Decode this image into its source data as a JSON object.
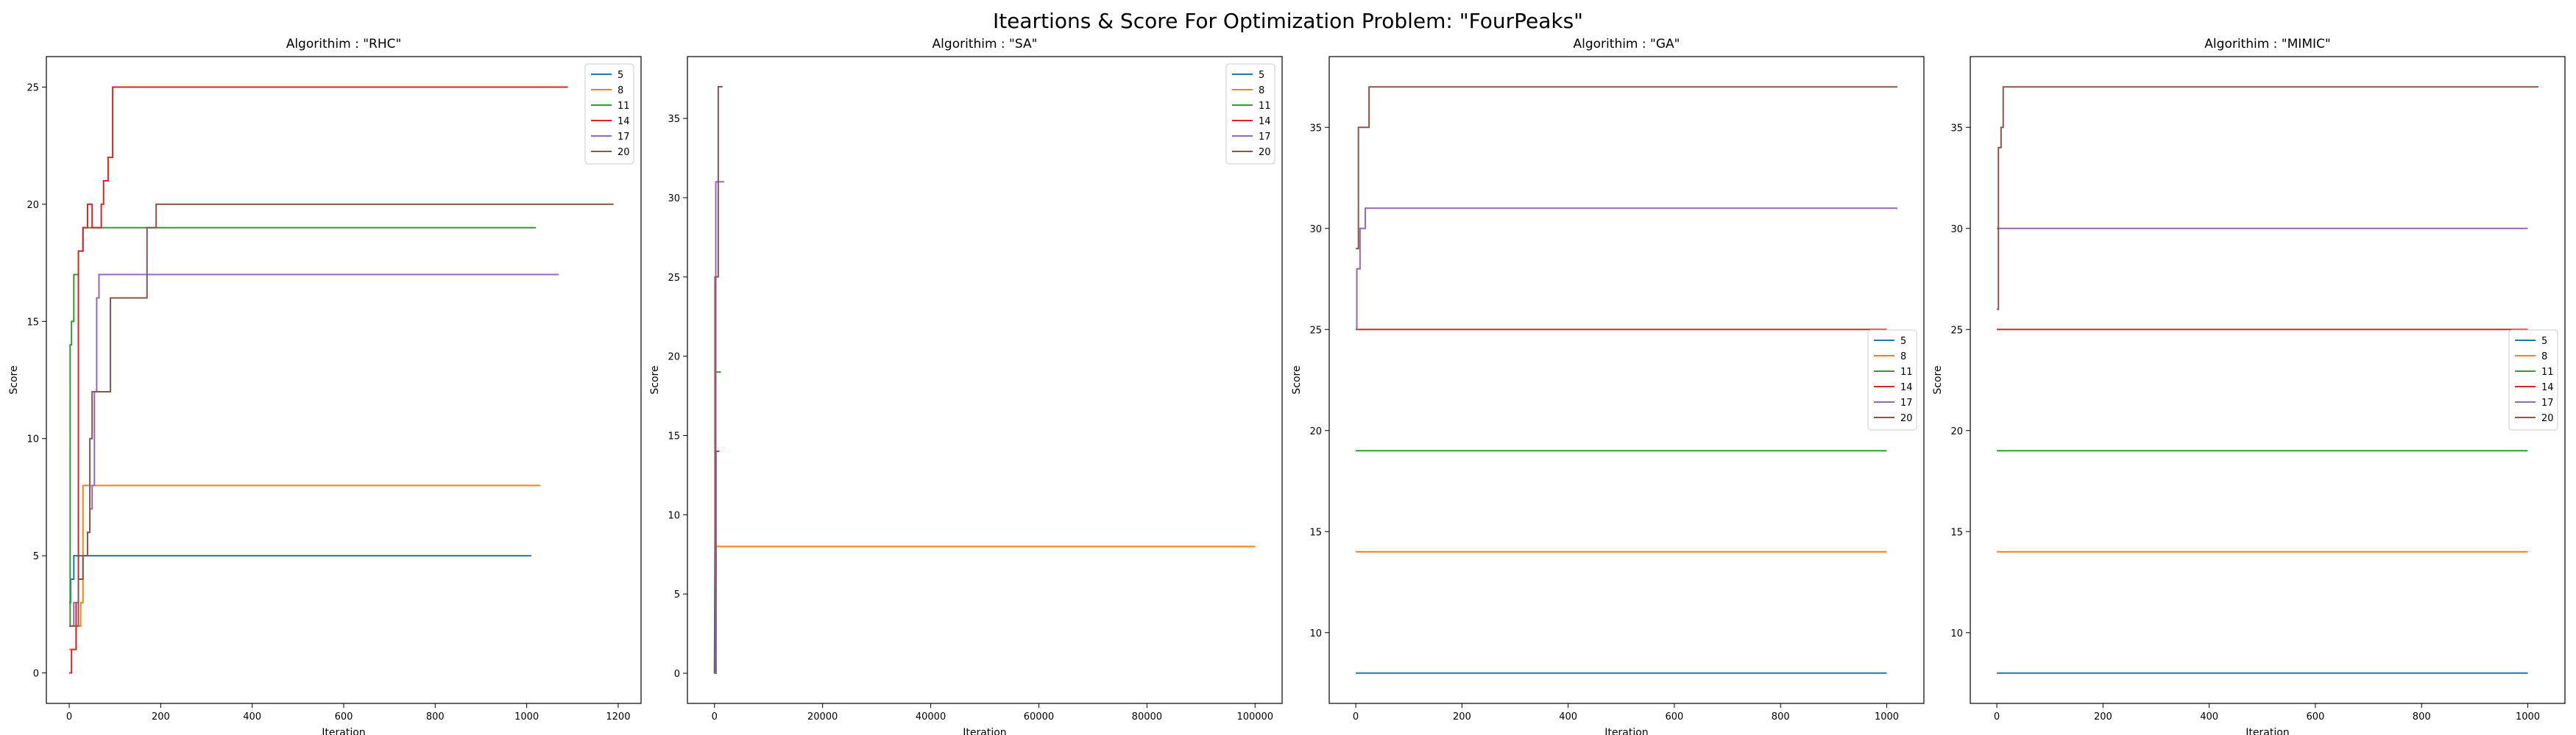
{
  "figure_title": "Iteartions & Score For Optimization Problem: \"FourPeaks\"",
  "colors": {
    "5": "#1f77b4",
    "8": "#ff7f0e",
    "11": "#2ca02c",
    "14": "#d62728",
    "17": "#9467bd",
    "20": "#8c564b"
  },
  "chart_data": [
    {
      "type": "line",
      "title": "Algorithim : \"RHC\"",
      "xlabel": "Iteration",
      "ylabel": "Score",
      "xlim": [
        -50,
        1250
      ],
      "ylim": [
        -1.3,
        26.3
      ],
      "xticks": [
        0,
        200,
        400,
        600,
        800,
        1000,
        1200
      ],
      "yticks": [
        0,
        5,
        10,
        15,
        20,
        25
      ],
      "legend": "top-right",
      "series": [
        {
          "name": "5",
          "x": [
            0,
            3,
            3,
            10,
            10,
            1010
          ],
          "y": [
            3,
            3,
            4,
            4,
            5,
            5
          ]
        },
        {
          "name": "8",
          "x": [
            0,
            15,
            15,
            25,
            25,
            30,
            30,
            1030
          ],
          "y": [
            1,
            1,
            2,
            2,
            3,
            3,
            8,
            8
          ]
        },
        {
          "name": "11",
          "x": [
            0,
            2,
            2,
            5,
            5,
            10,
            10,
            20,
            20,
            30,
            30,
            1020
          ],
          "y": [
            2,
            2,
            14,
            14,
            15,
            15,
            17,
            17,
            18,
            18,
            19,
            19
          ]
        },
        {
          "name": "14",
          "x": [
            0,
            5,
            5,
            15,
            15,
            20,
            20,
            30,
            30,
            40,
            40,
            50,
            50,
            55,
            55,
            60,
            60,
            70,
            70,
            75,
            75,
            85,
            85,
            95,
            95,
            1090
          ],
          "y": [
            0,
            0,
            1,
            1,
            3,
            3,
            18,
            18,
            19,
            19,
            20,
            20,
            19,
            19,
            19,
            19,
            19,
            19,
            20,
            20,
            21,
            21,
            22,
            22,
            25,
            25
          ]
        },
        {
          "name": "17",
          "x": [
            0,
            10,
            10,
            20,
            20,
            30,
            30,
            40,
            40,
            45,
            45,
            50,
            50,
            55,
            55,
            60,
            60,
            65,
            65,
            1070
          ],
          "y": [
            2,
            2,
            3,
            3,
            4,
            4,
            5,
            5,
            6,
            6,
            7,
            7,
            8,
            8,
            12,
            12,
            16,
            16,
            17,
            17
          ]
        },
        {
          "name": "20",
          "x": [
            0,
            20,
            20,
            30,
            30,
            40,
            40,
            45,
            45,
            50,
            50,
            90,
            90,
            100,
            100,
            170,
            170,
            190,
            190,
            1190
          ],
          "y": [
            2,
            2,
            4,
            4,
            5,
            5,
            6,
            6,
            10,
            10,
            12,
            12,
            16,
            16,
            16,
            16,
            19,
            19,
            20,
            20
          ]
        }
      ]
    },
    {
      "type": "line",
      "title": "Algorithim : \"SA\"",
      "xlabel": "Iteration",
      "ylabel": "Score",
      "xlim": [
        -5000,
        105000
      ],
      "ylim": [
        -1.9,
        38.9
      ],
      "xticks": [
        0,
        20000,
        40000,
        60000,
        80000,
        100000
      ],
      "yticks": [
        0,
        5,
        10,
        15,
        20,
        25,
        30,
        35
      ],
      "legend": "top-right",
      "series": [
        {
          "name": "5",
          "x": [
            0,
            100,
            100000
          ],
          "y": [
            0,
            8,
            8
          ]
        },
        {
          "name": "8",
          "x": [
            0,
            150,
            150,
            300,
            300,
            100000
          ],
          "y": [
            0,
            0,
            5,
            5,
            8,
            8
          ]
        },
        {
          "name": "11",
          "x": [
            0,
            200,
            200,
            1200
          ],
          "y": [
            0,
            0,
            19,
            19
          ]
        },
        {
          "name": "14",
          "x": [
            0,
            300,
            300,
            900
          ],
          "y": [
            0,
            0,
            14,
            14
          ]
        },
        {
          "name": "17",
          "x": [
            0,
            250,
            250,
            1800
          ],
          "y": [
            0,
            0,
            31,
            31
          ]
        },
        {
          "name": "20",
          "x": [
            0,
            100,
            100,
            700,
            700,
            1500
          ],
          "y": [
            0,
            0,
            25,
            25,
            37,
            37
          ]
        }
      ]
    },
    {
      "type": "line",
      "title": "Algorithim : \"GA\"",
      "xlabel": "Iteration",
      "ylabel": "Score",
      "xlim": [
        -50,
        1070
      ],
      "ylim": [
        6.5,
        38.5
      ],
      "xticks": [
        0,
        200,
        400,
        600,
        800,
        1000
      ],
      "yticks": [
        10,
        15,
        20,
        25,
        30,
        35
      ],
      "legend": "center-right",
      "series": [
        {
          "name": "5",
          "x": [
            0,
            1000
          ],
          "y": [
            8,
            8
          ]
        },
        {
          "name": "8",
          "x": [
            0,
            1000
          ],
          "y": [
            14,
            14
          ]
        },
        {
          "name": "11",
          "x": [
            0,
            1000
          ],
          "y": [
            19,
            19
          ]
        },
        {
          "name": "14",
          "x": [
            0,
            1000
          ],
          "y": [
            25,
            25
          ]
        },
        {
          "name": "17",
          "x": [
            0,
            2,
            2,
            8,
            8,
            18,
            18,
            1020
          ],
          "y": [
            25,
            25,
            28,
            28,
            30,
            30,
            31,
            31
          ]
        },
        {
          "name": "20",
          "x": [
            0,
            5,
            5,
            15,
            15,
            25,
            25,
            1020
          ],
          "y": [
            29,
            29,
            35,
            35,
            35,
            35,
            37,
            37
          ]
        }
      ]
    },
    {
      "type": "line",
      "title": "Algorithim : \"MIMIC\"",
      "xlabel": "Iteration",
      "ylabel": "Score",
      "xlim": [
        -50,
        1070
      ],
      "ylim": [
        6.5,
        38.5
      ],
      "xticks": [
        0,
        200,
        400,
        600,
        800,
        1000
      ],
      "yticks": [
        10,
        15,
        20,
        25,
        30,
        35
      ],
      "legend": "center-right",
      "series": [
        {
          "name": "5",
          "x": [
            0,
            1000
          ],
          "y": [
            8,
            8
          ]
        },
        {
          "name": "8",
          "x": [
            0,
            1000
          ],
          "y": [
            14,
            14
          ]
        },
        {
          "name": "11",
          "x": [
            0,
            1000
          ],
          "y": [
            19,
            19
          ]
        },
        {
          "name": "14",
          "x": [
            0,
            1000
          ],
          "y": [
            25,
            25
          ]
        },
        {
          "name": "17",
          "x": [
            0,
            1000
          ],
          "y": [
            30,
            30
          ]
        },
        {
          "name": "20",
          "x": [
            0,
            3,
            3,
            8,
            8,
            12,
            12,
            1020
          ],
          "y": [
            26,
            26,
            34,
            34,
            35,
            35,
            37,
            37
          ]
        }
      ]
    }
  ]
}
